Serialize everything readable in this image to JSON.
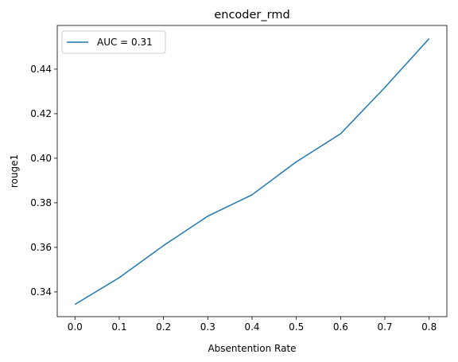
{
  "chart_data": {
    "type": "line",
    "title": "encoder_rmd",
    "xlabel": "Absentention Rate",
    "ylabel": "rouge1",
    "xlim": [
      -0.04,
      0.84
    ],
    "ylim": [
      0.3289,
      0.4596
    ],
    "xticks": [
      0.0,
      0.1,
      0.2,
      0.3,
      0.4,
      0.5,
      0.6,
      0.7,
      0.8
    ],
    "xtick_labels": [
      "0.0",
      "0.1",
      "0.2",
      "0.3",
      "0.4",
      "0.5",
      "0.6",
      "0.7",
      "0.8"
    ],
    "yticks": [
      0.34,
      0.36,
      0.38,
      0.4,
      0.42,
      0.44
    ],
    "ytick_labels": [
      "0.34",
      "0.36",
      "0.38",
      "0.40",
      "0.42",
      "0.44"
    ],
    "grid": false,
    "legend_position": "upper-left",
    "series": [
      {
        "name": "AUC = 0.31",
        "color": "#1f77b4",
        "x": [
          0.0,
          0.1,
          0.2,
          0.3,
          0.4,
          0.5,
          0.6,
          0.7,
          0.8
        ],
        "y": [
          0.3344,
          0.3464,
          0.3608,
          0.374,
          0.3836,
          0.3984,
          0.411,
          0.4318,
          0.4537
        ]
      }
    ]
  }
}
